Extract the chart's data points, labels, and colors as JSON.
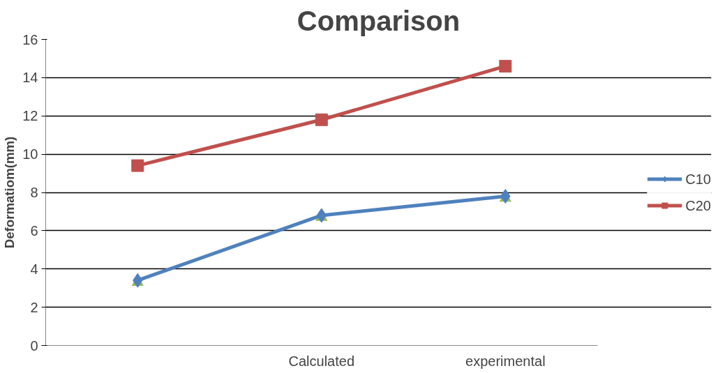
{
  "chart_data": {
    "type": "line",
    "title": "Comparison",
    "ylabel": "Deformatiom(mm)",
    "categories": [
      null,
      "Calculated",
      "experimental"
    ],
    "series": [
      {
        "type": "scatter",
        "marker": "triangle",
        "color": "#9bbb59",
        "values": [
          3.3,
          6.7,
          7.7
        ]
      },
      {
        "name": "C10",
        "marker": "diamond",
        "color": "#4f81bd",
        "values": [
          3.4,
          6.8,
          7.8
        ]
      },
      {
        "name": "C20",
        "marker": "square",
        "color": "#c0504d",
        "values": [
          9.4,
          11.8,
          14.6
        ]
      }
    ],
    "ylim": [
      0,
      16
    ],
    "yticks": [
      0,
      2,
      4,
      6,
      8,
      10,
      12,
      14,
      16
    ],
    "grid": "y",
    "legend": "right"
  }
}
